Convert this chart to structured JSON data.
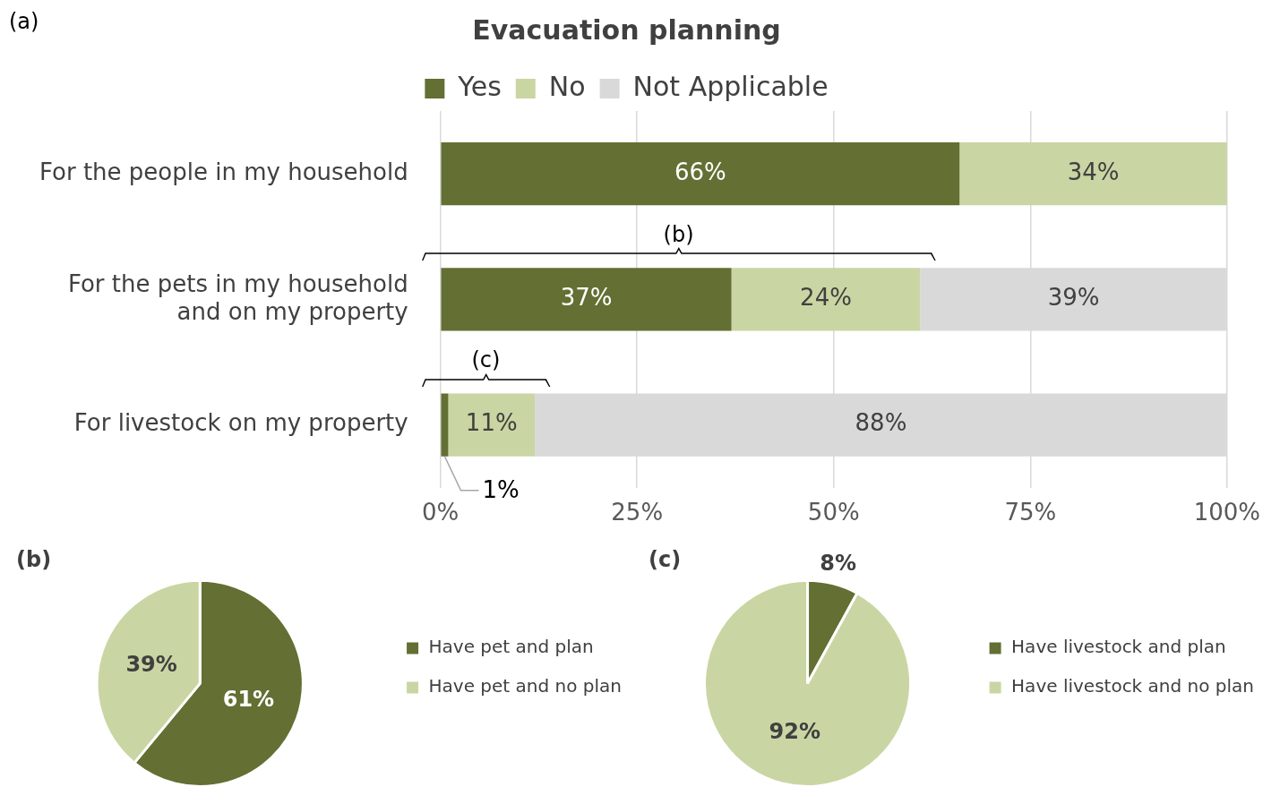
{
  "chart_data": [
    {
      "type": "bar",
      "orientation": "horizontal",
      "stacked": true,
      "title": "Evacuation planning",
      "annotations": [
        "(a)",
        "(b)",
        "(c)"
      ],
      "categories": [
        "For the people in my household",
        "For the pets in my household and on my property",
        "For livestock on my property"
      ],
      "series": [
        {
          "name": "Yes",
          "color": "#636f33",
          "values": [
            66,
            37,
            1
          ],
          "value_labels": [
            "66%",
            "37%",
            "1%"
          ]
        },
        {
          "name": "No",
          "color": "#c9d6a3",
          "values": [
            34,
            24,
            11
          ],
          "value_labels": [
            "34%",
            "24%",
            "11%"
          ]
        },
        {
          "name": "Not Applicable",
          "color": "#d9d9d9",
          "values": [
            null,
            39,
            88
          ],
          "value_labels": [
            null,
            "39%",
            "88%"
          ]
        }
      ],
      "xlim": [
        0,
        100
      ],
      "xticks": [
        {
          "value": 0,
          "label": "0%"
        },
        {
          "value": 25,
          "label": "25%"
        },
        {
          "value": 50,
          "label": "50%"
        },
        {
          "value": 75,
          "label": "75%"
        },
        {
          "value": 100,
          "label": "100%"
        }
      ],
      "grid": "x",
      "legend": "top"
    },
    {
      "type": "pie",
      "title": "(b)",
      "categories": [
        "Have pet and plan",
        "Have pet and no plan"
      ],
      "values": [
        61,
        39
      ],
      "colors": [
        "#636f33",
        "#c9d6a3"
      ],
      "value_labels": [
        "61%",
        "39%"
      ],
      "legend": "right"
    },
    {
      "type": "pie",
      "title": "(c)",
      "categories": [
        "Have livestock and plan",
        "Have livestock and no plan"
      ],
      "values": [
        8,
        92
      ],
      "colors": [
        "#636f33",
        "#c9d6a3"
      ],
      "value_labels": [
        "8%",
        "92%"
      ],
      "legend": "right"
    }
  ]
}
